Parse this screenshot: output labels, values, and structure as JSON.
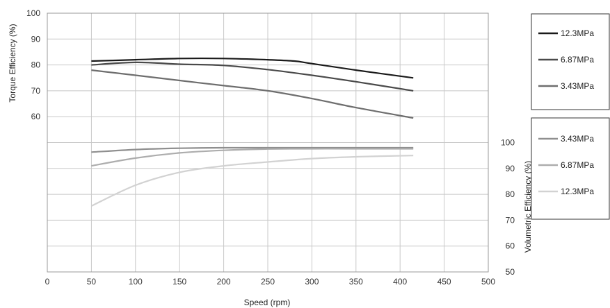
{
  "chart_data": {
    "type": "line",
    "xlabel": "Speed (rpm)",
    "ylabel_left": "Torque Efficiency (%)",
    "ylabel_right": "Volumetric Efficiency (%)",
    "xlim": [
      0,
      500
    ],
    "x_ticks": [
      0,
      50,
      100,
      150,
      200,
      250,
      300,
      350,
      400,
      450,
      500
    ],
    "ylim_left": [
      0,
      100
    ],
    "y_ticks_left": [
      60,
      70,
      80,
      90,
      100
    ],
    "ylim_right": [
      50,
      100
    ],
    "y_ticks_right": [
      50,
      60,
      70,
      80,
      90,
      100
    ],
    "grid": true,
    "torque_series": [
      {
        "name": "12.3MPa",
        "color": "#1a1a1a",
        "x": [
          50,
          100,
          150,
          200,
          250,
          280,
          300,
          350,
          415
        ],
        "y": [
          81.5,
          82.0,
          82.5,
          82.5,
          82.0,
          81.5,
          80.5,
          78.0,
          75.0
        ]
      },
      {
        "name": "6.87MPa",
        "color": "#4a4a4a",
        "x": [
          50,
          100,
          150,
          200,
          250,
          300,
          350,
          415
        ],
        "y": [
          80.0,
          81.0,
          80.3,
          79.8,
          78.2,
          76.0,
          73.5,
          70.0
        ]
      },
      {
        "name": "3.43MPa",
        "color": "#6e6e6e",
        "x": [
          50,
          100,
          150,
          200,
          250,
          300,
          350,
          415
        ],
        "y": [
          78.0,
          76.0,
          74.0,
          72.0,
          70.0,
          67.0,
          63.5,
          59.5
        ]
      }
    ],
    "volumetric_series": [
      {
        "name": "3.43MPa",
        "color": "#8f8f8f",
        "x": [
          50,
          100,
          150,
          200,
          250,
          300,
          350,
          415
        ],
        "y": [
          96.3,
          97.3,
          97.8,
          98.0,
          98.0,
          98.0,
          98.0,
          98.0
        ]
      },
      {
        "name": "6.87MPa",
        "color": "#adadad",
        "x": [
          50,
          100,
          150,
          200,
          250,
          300,
          350,
          415
        ],
        "y": [
          91.0,
          94.0,
          96.0,
          97.0,
          97.5,
          97.6,
          97.6,
          97.6
        ]
      },
      {
        "name": "12.3MPa",
        "color": "#d2d2d2",
        "x": [
          50,
          100,
          150,
          200,
          250,
          300,
          350,
          415
        ],
        "y": [
          75.5,
          83.5,
          88.5,
          91.0,
          92.5,
          93.8,
          94.5,
          95.0
        ]
      }
    ]
  }
}
